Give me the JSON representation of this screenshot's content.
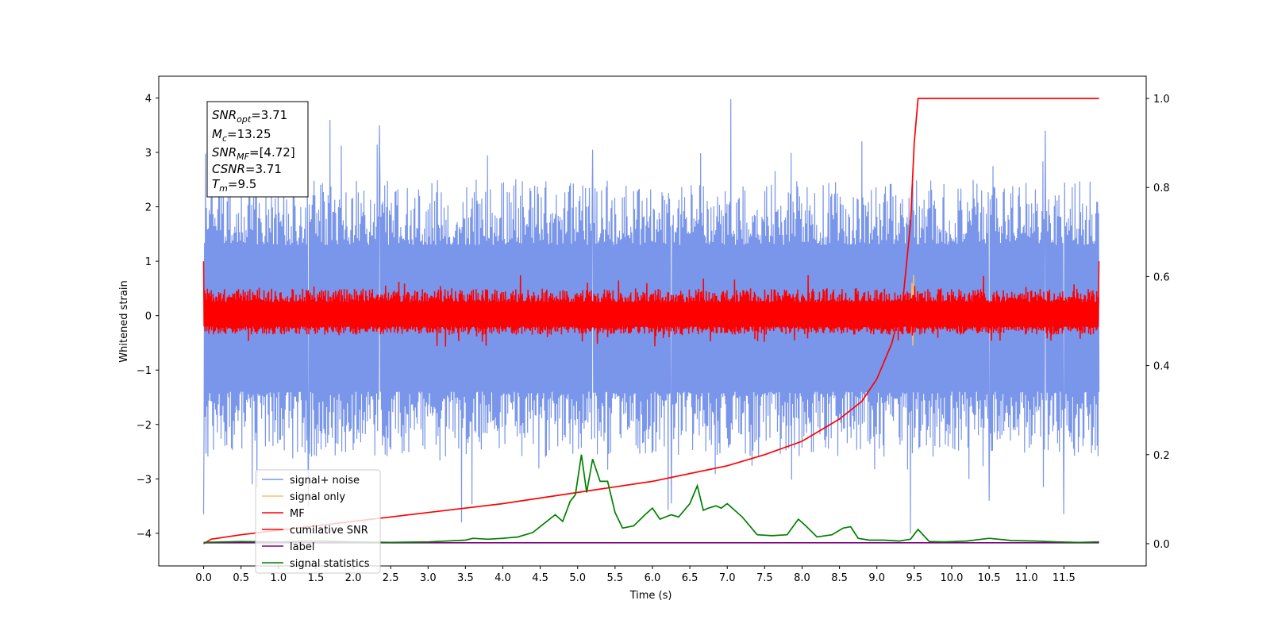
{
  "chart_data": {
    "type": "line",
    "xlabel": "Time (s)",
    "ylabel": "Whitened strain",
    "xlim": [
      -0.6,
      12.6
    ],
    "ylim": [
      -4.6,
      4.4
    ],
    "y2lim": [
      -0.05,
      1.05
    ],
    "x_ticks": [
      "0.0",
      "0.5",
      "1.0",
      "1.5",
      "2.0",
      "2.5",
      "3.0",
      "3.5",
      "4.0",
      "4.5",
      "5.0",
      "5.5",
      "6.0",
      "6.5",
      "7.0",
      "7.5",
      "8.0",
      "8.5",
      "9.0",
      "9.5",
      "10.0",
      "10.5",
      "11.0",
      "11.5"
    ],
    "y_ticks": [
      "4",
      "3",
      "2",
      "1",
      "0",
      "−1",
      "−2",
      "−3",
      "−4"
    ],
    "y2_ticks": [
      "1.0",
      "0.8",
      "0.6",
      "0.4",
      "0.2",
      "0.0"
    ],
    "colors": {
      "noise": "#4169e1",
      "signal": "#f5c26b",
      "mf": "#ff0000",
      "cumulative": "#ff0000",
      "label": "#800080",
      "stats": "#008000"
    },
    "annotation": {
      "snr_opt": "3.71",
      "mc": "13.25",
      "snr_mf": "[4.72]",
      "csnr": "3.71",
      "tm": "9.5"
    },
    "legend": {
      "placement": "lower-left",
      "entries": [
        "signal+ noise",
        "signal only",
        "MF",
        "cumilative SNR",
        "label",
        "signal statistics"
      ]
    },
    "series": [
      {
        "name": "signal+ noise",
        "axis": "left",
        "kind": "noise",
        "x_range": [
          0,
          11.97
        ],
        "band_high": [
          1.3,
          2.5
        ],
        "band_low": [
          -1.4,
          -2.6
        ],
        "peaks": [
          {
            "x": 0.0,
            "y": -3.65
          },
          {
            "x": 0.2,
            "y": 2.4
          },
          {
            "x": 0.65,
            "y": -3.1
          },
          {
            "x": 1.4,
            "y": -3.5
          },
          {
            "x": 2.35,
            "y": 3.5
          },
          {
            "x": 3.45,
            "y": -3.8
          },
          {
            "x": 5.2,
            "y": 3.05
          },
          {
            "x": 6.25,
            "y": -3.45
          },
          {
            "x": 7.05,
            "y": 3.98
          },
          {
            "x": 9.45,
            "y": -4.0
          },
          {
            "x": 10.5,
            "y": -3.4
          },
          {
            "x": 11.25,
            "y": 3.4
          },
          {
            "x": 11.5,
            "y": -3.65
          }
        ]
      },
      {
        "name": "signal only",
        "axis": "left",
        "x": [
          9.44,
          9.46,
          9.47,
          9.48,
          9.49,
          9.5,
          9.51
        ],
        "y": [
          0.1,
          -0.3,
          0.6,
          -0.55,
          0.75,
          -0.2,
          0.1
        ]
      },
      {
        "name": "MF",
        "axis": "left",
        "kind": "noise",
        "x_range": [
          0,
          11.97
        ],
        "band_high": [
          0.25,
          0.5
        ],
        "band_low": [
          -0.2,
          -0.35
        ],
        "edge_values": [
          1.0,
          1.0
        ]
      },
      {
        "name": "cumilative SNR",
        "axis": "right",
        "x": [
          0.0,
          0.1,
          0.5,
          1.0,
          2.0,
          3.0,
          4.0,
          5.0,
          6.0,
          7.0,
          7.5,
          8.0,
          8.5,
          8.8,
          9.0,
          9.2,
          9.35,
          9.45,
          9.5,
          9.55,
          11.97
        ],
        "y": [
          0.0,
          0.01,
          0.02,
          0.03,
          0.05,
          0.07,
          0.09,
          0.115,
          0.14,
          0.175,
          0.2,
          0.23,
          0.28,
          0.32,
          0.37,
          0.45,
          0.55,
          0.72,
          0.9,
          1.0,
          1.0
        ]
      },
      {
        "name": "label",
        "axis": "right",
        "x": [
          0.0,
          11.97
        ],
        "y": [
          0.002,
          0.002
        ]
      },
      {
        "name": "signal statistics",
        "axis": "right",
        "x": [
          0.0,
          0.5,
          1.0,
          1.5,
          2.0,
          2.5,
          3.0,
          3.5,
          3.6,
          3.8,
          4.0,
          4.2,
          4.4,
          4.55,
          4.7,
          4.8,
          4.9,
          4.97,
          5.05,
          5.12,
          5.2,
          5.3,
          5.4,
          5.5,
          5.6,
          5.75,
          5.9,
          6.0,
          6.1,
          6.25,
          6.35,
          6.5,
          6.6,
          6.68,
          6.75,
          6.85,
          6.92,
          7.0,
          7.2,
          7.4,
          7.6,
          7.8,
          7.95,
          8.05,
          8.2,
          8.4,
          8.55,
          8.65,
          8.75,
          8.9,
          9.1,
          9.3,
          9.45,
          9.55,
          9.7,
          9.9,
          10.2,
          10.5,
          10.8,
          11.1,
          11.4,
          11.7,
          11.97
        ],
        "y": [
          0.003,
          0.005,
          0.004,
          0.006,
          0.004,
          0.003,
          0.004,
          0.008,
          0.012,
          0.01,
          0.012,
          0.015,
          0.025,
          0.045,
          0.065,
          0.05,
          0.095,
          0.11,
          0.2,
          0.115,
          0.19,
          0.14,
          0.14,
          0.07,
          0.035,
          0.04,
          0.065,
          0.08,
          0.055,
          0.065,
          0.06,
          0.09,
          0.13,
          0.075,
          0.08,
          0.085,
          0.08,
          0.09,
          0.06,
          0.02,
          0.018,
          0.02,
          0.055,
          0.04,
          0.015,
          0.02,
          0.035,
          0.038,
          0.012,
          0.008,
          0.008,
          0.006,
          0.01,
          0.032,
          0.005,
          0.004,
          0.006,
          0.012,
          0.007,
          0.006,
          0.004,
          0.003,
          0.004
        ]
      }
    ]
  }
}
